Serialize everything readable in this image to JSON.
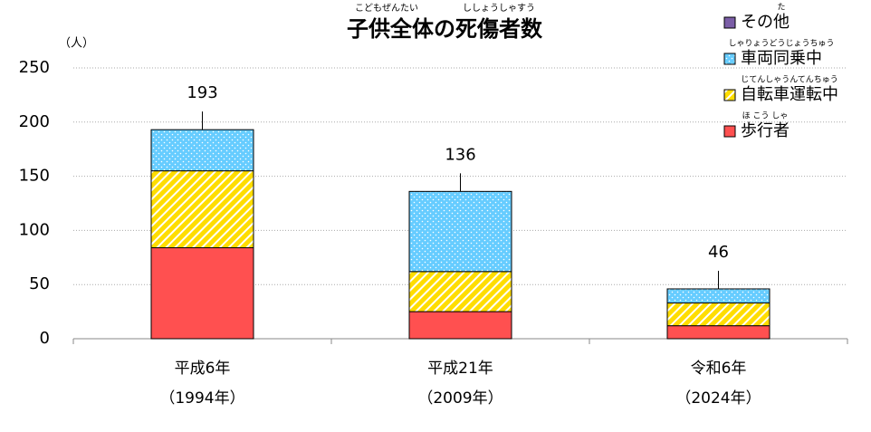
{
  "chart_data": {
    "type": "stacked-bar",
    "title": "子供全体の死傷者数",
    "title_furigana": [
      "こどもぜんたい",
      "ししょうしゃすう"
    ],
    "y_unit": "（人）",
    "categories": [
      "平成6年",
      "平成21年",
      "令和6年"
    ],
    "category_sublabels": [
      "（1994年）",
      "（2009年）",
      "（2024年）"
    ],
    "series": [
      {
        "name": "歩行者",
        "furigana": "ほ こう しゃ",
        "color": "#ff5050",
        "pattern": "solid",
        "values": [
          84,
          25,
          12
        ]
      },
      {
        "name": "自転車運転中",
        "furigana": "じてんしゃうんてんちゅう",
        "color": "#ffdd00",
        "pattern": "stripes",
        "values": [
          71,
          37,
          21
        ]
      },
      {
        "name": "車両同乗中",
        "furigana": "しゃりょうどうじょうちゅう",
        "color": "#66ccff",
        "pattern": "dots",
        "values": [
          38,
          74,
          13
        ]
      },
      {
        "name": "その他",
        "furigana": "た",
        "color": "#7b5ea7",
        "pattern": "solid",
        "values": [
          0,
          0,
          0
        ]
      }
    ],
    "totals": [
      193,
      136,
      46
    ],
    "ylim": [
      0,
      250
    ],
    "yticks": [
      0,
      50,
      100,
      150,
      200,
      250
    ],
    "grid": true
  }
}
